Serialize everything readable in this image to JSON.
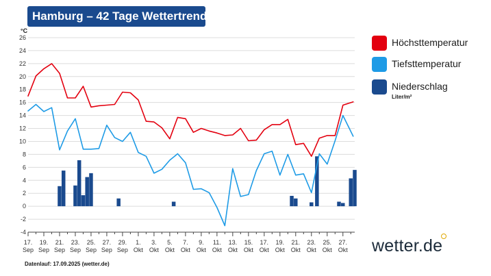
{
  "header": {
    "title": "Hamburg – 42 Tage Wettertrend"
  },
  "footer": {
    "text": "Datenlauf: 17.09.2025 (wetter.de)"
  },
  "logo": {
    "text": "wetter.de"
  },
  "legend": [
    {
      "label": "Höchsttemperatur",
      "sub": "",
      "color": "#e3000f"
    },
    {
      "label": "Tiefsttemperatur",
      "sub": "",
      "color": "#1e9be6"
    },
    {
      "label": "Niederschlag",
      "sub": "Liter/m²",
      "color": "#1a4a8e"
    }
  ],
  "chart_data": {
    "type": "line",
    "title": "Hamburg – 42 Tage Wettertrend",
    "ylabel": "°C",
    "ylim": [
      -4,
      26
    ],
    "yticks": [
      -4,
      -2,
      0,
      2,
      4,
      6,
      8,
      10,
      12,
      14,
      16,
      18,
      20,
      22,
      24,
      26
    ],
    "grid": true,
    "legend_position": "right",
    "x_start": "17. Sep",
    "x_days": 42,
    "x_ticks": [
      {
        "day": 0,
        "top": "17.",
        "bottom": "Sep"
      },
      {
        "day": 2,
        "top": "19.",
        "bottom": "Sep"
      },
      {
        "day": 4,
        "top": "21.",
        "bottom": "Sep"
      },
      {
        "day": 6,
        "top": "23.",
        "bottom": "Sep"
      },
      {
        "day": 8,
        "top": "25.",
        "bottom": "Sep"
      },
      {
        "day": 10,
        "top": "27.",
        "bottom": "Sep"
      },
      {
        "day": 12,
        "top": "29.",
        "bottom": "Sep"
      },
      {
        "day": 14,
        "top": "1.",
        "bottom": "Okt"
      },
      {
        "day": 16,
        "top": "3.",
        "bottom": "Okt"
      },
      {
        "day": 18,
        "top": "5.",
        "bottom": "Okt"
      },
      {
        "day": 20,
        "top": "7.",
        "bottom": "Okt"
      },
      {
        "day": 22,
        "top": "9.",
        "bottom": "Okt"
      },
      {
        "day": 24,
        "top": "11.",
        "bottom": "Okt"
      },
      {
        "day": 26,
        "top": "13.",
        "bottom": "Okt"
      },
      {
        "day": 28,
        "top": "15.",
        "bottom": "Okt"
      },
      {
        "day": 30,
        "top": "17.",
        "bottom": "Okt"
      },
      {
        "day": 32,
        "top": "19.",
        "bottom": "Okt"
      },
      {
        "day": 34,
        "top": "21.",
        "bottom": "Okt"
      },
      {
        "day": 36,
        "top": "23.",
        "bottom": "Okt"
      },
      {
        "day": 38,
        "top": "25.",
        "bottom": "Okt"
      },
      {
        "day": 40,
        "top": "27.",
        "bottom": "Okt"
      }
    ],
    "series": [
      {
        "name": "Höchsttemperatur",
        "color": "#e3000f",
        "values": [
          [
            0,
            17.0
          ],
          [
            1,
            20.1
          ],
          [
            2,
            21.2
          ],
          [
            3,
            22.0
          ],
          [
            4,
            20.5
          ],
          [
            5,
            16.7
          ],
          [
            6,
            16.7
          ],
          [
            7,
            18.5
          ],
          [
            8,
            15.3
          ],
          [
            9,
            15.5
          ],
          [
            10,
            15.6
          ],
          [
            11,
            15.7
          ],
          [
            12,
            17.6
          ],
          [
            13,
            17.5
          ],
          [
            14,
            16.4
          ],
          [
            15,
            13.1
          ],
          [
            16,
            13.0
          ],
          [
            17,
            12.1
          ],
          [
            18,
            10.4
          ],
          [
            19,
            13.7
          ],
          [
            20,
            13.5
          ],
          [
            21,
            11.4
          ],
          [
            22,
            12.0
          ],
          [
            23,
            11.6
          ],
          [
            24,
            11.3
          ],
          [
            25,
            10.9
          ],
          [
            26,
            11.0
          ],
          [
            27,
            12.0
          ],
          [
            28,
            10.1
          ],
          [
            29,
            10.2
          ],
          [
            30,
            11.8
          ],
          [
            31,
            12.6
          ],
          [
            32,
            12.6
          ],
          [
            33,
            13.4
          ],
          [
            34,
            9.5
          ],
          [
            35,
            9.7
          ],
          [
            36,
            7.7
          ],
          [
            37,
            10.5
          ],
          [
            38,
            10.9
          ],
          [
            39,
            10.9
          ],
          [
            40,
            15.6
          ],
          [
            41.3,
            16.1
          ]
        ]
      },
      {
        "name": "Tiefsttemperatur",
        "color": "#1e9be6",
        "values": [
          [
            0,
            14.7
          ],
          [
            1,
            15.7
          ],
          [
            2,
            14.6
          ],
          [
            3,
            15.2
          ],
          [
            4,
            8.7
          ],
          [
            5,
            11.6
          ],
          [
            6,
            13.5
          ],
          [
            7,
            8.8
          ],
          [
            8,
            8.8
          ],
          [
            9,
            8.9
          ],
          [
            10,
            12.5
          ],
          [
            11,
            10.6
          ],
          [
            12,
            10.0
          ],
          [
            13,
            11.4
          ],
          [
            14,
            8.3
          ],
          [
            15,
            7.7
          ],
          [
            16,
            5.1
          ],
          [
            17,
            5.7
          ],
          [
            18,
            7.1
          ],
          [
            19,
            8.1
          ],
          [
            20,
            6.7
          ],
          [
            21,
            2.6
          ],
          [
            22,
            2.7
          ],
          [
            23,
            2.1
          ],
          [
            24,
            -0.2
          ],
          [
            25,
            -3.0
          ],
          [
            26,
            5.8
          ],
          [
            27,
            1.5
          ],
          [
            28,
            1.8
          ],
          [
            29,
            5.5
          ],
          [
            30,
            8.1
          ],
          [
            31,
            8.5
          ],
          [
            32,
            4.8
          ],
          [
            33,
            8.0
          ],
          [
            34,
            4.8
          ],
          [
            35,
            5.0
          ],
          [
            36,
            2.1
          ],
          [
            37,
            8.1
          ],
          [
            38,
            6.5
          ],
          [
            39,
            10.1
          ],
          [
            40,
            14.0
          ],
          [
            41.3,
            10.8
          ]
        ]
      }
    ],
    "bars": {
      "name": "Niederschlag",
      "color": "#1a4a8e",
      "unit": "Liter/m²",
      "values": [
        [
          4.0,
          3.1
        ],
        [
          4.5,
          5.5
        ],
        [
          6.0,
          3.2
        ],
        [
          6.5,
          7.1
        ],
        [
          7.0,
          1.7
        ],
        [
          7.5,
          4.5
        ],
        [
          8.0,
          5.1
        ],
        [
          11.5,
          1.2
        ],
        [
          18.5,
          0.7
        ],
        [
          33.5,
          1.6
        ],
        [
          34.0,
          1.2
        ],
        [
          36.0,
          0.6
        ],
        [
          36.7,
          7.7
        ],
        [
          39.5,
          0.7
        ],
        [
          40.0,
          0.5
        ],
        [
          41.0,
          4.3
        ],
        [
          41.5,
          5.6
        ]
      ]
    }
  }
}
